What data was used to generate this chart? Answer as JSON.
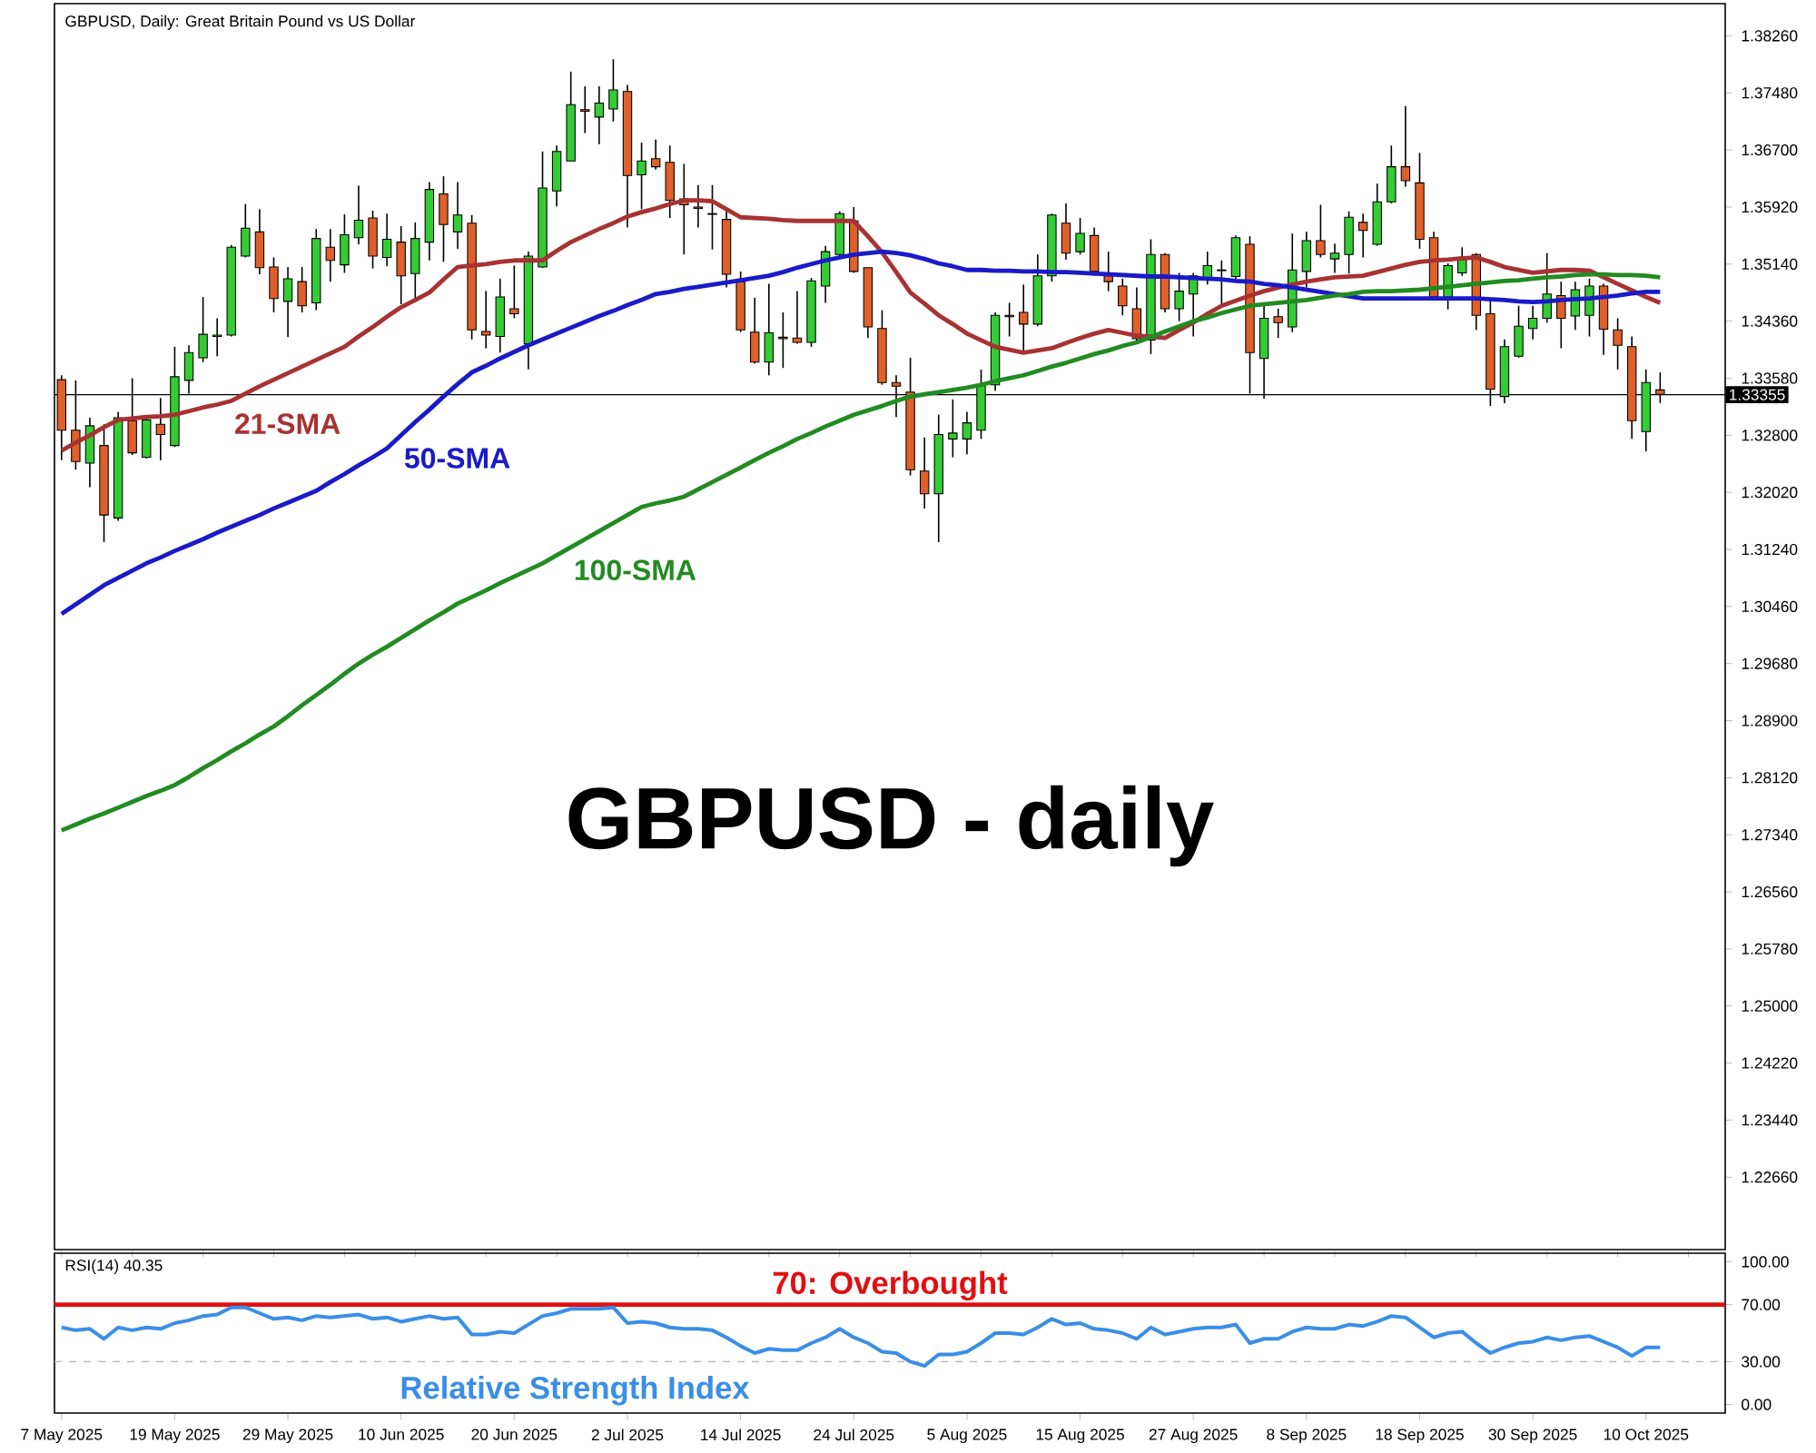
{
  "chart_data": [
    {
      "type": "candlestick",
      "title": "GBPUSD, Daily:  Great Britain Pound vs US Dollar",
      "categories": [
        null,
        null,
        null,
        null,
        null,
        null,
        null,
        null,
        null,
        null,
        null,
        null,
        null,
        null,
        null,
        null,
        null,
        null,
        null,
        null,
        null,
        null,
        null,
        null,
        null,
        null,
        null,
        null,
        null,
        null,
        null,
        null,
        null,
        null,
        null,
        null,
        null,
        null,
        null,
        null,
        null,
        null,
        null,
        null,
        null,
        null,
        null,
        null,
        null,
        null,
        null,
        null,
        null,
        null,
        null,
        null,
        null,
        null,
        null,
        null,
        null,
        null,
        null,
        null,
        null,
        null,
        null,
        null,
        null,
        null,
        null,
        null,
        null,
        null,
        null,
        null,
        null,
        null,
        null,
        null,
        null,
        null,
        null,
        null,
        null,
        null,
        null,
        null,
        null,
        null,
        null,
        null,
        null,
        null,
        null,
        null,
        null,
        null,
        null,
        null,
        null,
        null,
        null,
        null,
        null,
        null,
        null,
        null,
        null,
        null,
        null,
        null,
        null,
        null
      ],
      "tick_labels": "y",
      "ohlc": [
        [
          1.3356,
          1.3362,
          1.3246,
          1.3287
        ],
        [
          1.3287,
          1.3355,
          1.3233,
          1.3244
        ],
        [
          1.3242,
          1.3304,
          1.3209,
          1.3293
        ],
        [
          1.3266,
          1.3295,
          1.3134,
          1.3171
        ],
        [
          1.3167,
          1.3312,
          1.3163,
          1.3304
        ],
        [
          1.33,
          1.3358,
          1.3253,
          1.3256
        ],
        [
          1.325,
          1.3304,
          1.3248,
          1.3301
        ],
        [
          1.3295,
          1.3331,
          1.3246,
          1.3281
        ],
        [
          1.3266,
          1.3401,
          1.3264,
          1.336
        ],
        [
          1.3355,
          1.3403,
          1.3337,
          1.3393
        ],
        [
          1.3386,
          1.3469,
          1.338,
          1.3418
        ],
        [
          1.3415,
          1.344,
          1.3388,
          1.3417
        ],
        [
          1.3417,
          1.354,
          1.3415,
          1.3537
        ],
        [
          1.3525,
          1.3596,
          1.3523,
          1.3563
        ],
        [
          1.3558,
          1.3589,
          1.35,
          1.3509
        ],
        [
          1.351,
          1.3523,
          1.3448,
          1.3467
        ],
        [
          1.3463,
          1.351,
          1.3414,
          1.3494
        ],
        [
          1.349,
          1.351,
          1.3448,
          1.3457
        ],
        [
          1.3461,
          1.3562,
          1.3451,
          1.3549
        ],
        [
          1.3537,
          1.3562,
          1.349,
          1.3519
        ],
        [
          1.3513,
          1.3582,
          1.3502,
          1.3554
        ],
        [
          1.355,
          1.3621,
          1.3541,
          1.3574
        ],
        [
          1.3577,
          1.3587,
          1.3508,
          1.3525
        ],
        [
          1.3523,
          1.3583,
          1.3511,
          1.3548
        ],
        [
          1.3544,
          1.3566,
          1.3459,
          1.3498
        ],
        [
          1.3501,
          1.3571,
          1.3467,
          1.3549
        ],
        [
          1.3544,
          1.3626,
          1.3519,
          1.3616
        ],
        [
          1.361,
          1.3634,
          1.3517,
          1.3568
        ],
        [
          1.3558,
          1.3626,
          1.3535,
          1.3581
        ],
        [
          1.357,
          1.3581,
          1.3411,
          1.3424
        ],
        [
          1.3422,
          1.3477,
          1.3399,
          1.3417
        ],
        [
          1.3415,
          1.3494,
          1.3393,
          1.3469
        ],
        [
          1.3453,
          1.3512,
          1.344,
          1.3446
        ],
        [
          1.3405,
          1.3531,
          1.337,
          1.3525
        ],
        [
          1.351,
          1.3668,
          1.3509,
          1.3618
        ],
        [
          1.3614,
          1.3676,
          1.3593,
          1.3668
        ],
        [
          1.3655,
          1.3777,
          1.3655,
          1.3732
        ],
        [
          1.3725,
          1.3757,
          1.3693,
          1.3723
        ],
        [
          1.3715,
          1.3757,
          1.3678,
          1.3734
        ],
        [
          1.3726,
          1.3794,
          1.3709,
          1.3752
        ],
        [
          1.375,
          1.3759,
          1.3564,
          1.3635
        ],
        [
          1.3636,
          1.368,
          1.3589,
          1.3655
        ],
        [
          1.3658,
          1.3684,
          1.3643,
          1.3647
        ],
        [
          1.3653,
          1.3676,
          1.3577,
          1.3601
        ],
        [
          1.3603,
          1.3651,
          1.3527,
          1.3595
        ],
        [
          1.3592,
          1.3622,
          1.3564,
          1.359
        ],
        [
          1.3583,
          1.3622,
          1.3534,
          1.3582
        ],
        [
          1.3575,
          1.3586,
          1.3482,
          1.35
        ],
        [
          1.349,
          1.3504,
          1.3421,
          1.3424
        ],
        [
          1.3421,
          1.3468,
          1.3378,
          1.338
        ],
        [
          1.338,
          1.3487,
          1.3362,
          1.342
        ],
        [
          1.3414,
          1.3448,
          1.3372,
          1.3412
        ],
        [
          1.3413,
          1.3477,
          1.3405,
          1.3407
        ],
        [
          1.3407,
          1.3495,
          1.3401,
          1.3491
        ],
        [
          1.3484,
          1.3539,
          1.3461,
          1.3531
        ],
        [
          1.3527,
          1.3586,
          1.3523,
          1.3583
        ],
        [
          1.3573,
          1.3592,
          1.3502,
          1.3504
        ],
        [
          1.3509,
          1.3509,
          1.3413,
          1.3428
        ],
        [
          1.3426,
          1.3451,
          1.3349,
          1.3352
        ],
        [
          1.3352,
          1.3362,
          1.3305,
          1.3347
        ],
        [
          1.3339,
          1.3386,
          1.3225,
          1.3233
        ],
        [
          1.3231,
          1.3277,
          1.318,
          1.32
        ],
        [
          1.32,
          1.3308,
          1.3134,
          1.3281
        ],
        [
          1.3275,
          1.3329,
          1.325,
          1.3283
        ],
        [
          1.3275,
          1.3312,
          1.3254,
          1.3297
        ],
        [
          1.3287,
          1.337,
          1.3275,
          1.3349
        ],
        [
          1.3349,
          1.3448,
          1.3341,
          1.3444
        ],
        [
          1.3444,
          1.3461,
          1.3415,
          1.3442
        ],
        [
          1.3448,
          1.3486,
          1.3395,
          1.3432
        ],
        [
          1.3432,
          1.3527,
          1.3429,
          1.3498
        ],
        [
          1.3498,
          1.3583,
          1.349,
          1.3581
        ],
        [
          1.357,
          1.3597,
          1.352,
          1.3529
        ],
        [
          1.3531,
          1.3577,
          1.3527,
          1.3556
        ],
        [
          1.3553,
          1.3564,
          1.3498,
          1.3504
        ],
        [
          1.3498,
          1.3531,
          1.3477,
          1.349
        ],
        [
          1.3484,
          1.3494,
          1.3444,
          1.3457
        ],
        [
          1.3453,
          1.3482,
          1.3407,
          1.3412
        ],
        [
          1.341,
          1.3548,
          1.3391,
          1.3527
        ],
        [
          1.3527,
          1.3529,
          1.3448,
          1.3453
        ],
        [
          1.3453,
          1.3502,
          1.3436,
          1.3477
        ],
        [
          1.3473,
          1.3502,
          1.3415,
          1.3498
        ],
        [
          1.3494,
          1.3531,
          1.3486,
          1.3512
        ],
        [
          1.3506,
          1.3519,
          1.3457,
          1.3505
        ],
        [
          1.3497,
          1.3553,
          1.3494,
          1.355
        ],
        [
          1.3541,
          1.3552,
          1.3337,
          1.3393
        ],
        [
          1.3385,
          1.3461,
          1.333,
          1.344
        ],
        [
          1.3442,
          1.3453,
          1.3413,
          1.3434
        ],
        [
          1.3428,
          1.3556,
          1.3421,
          1.3506
        ],
        [
          1.3504,
          1.3558,
          1.3482,
          1.3546
        ],
        [
          1.3546,
          1.3595,
          1.3523,
          1.3527
        ],
        [
          1.3521,
          1.3542,
          1.3502,
          1.3529
        ],
        [
          1.3527,
          1.3586,
          1.3501,
          1.3578
        ],
        [
          1.3571,
          1.3583,
          1.3523,
          1.356
        ],
        [
          1.3541,
          1.3624,
          1.3539,
          1.3599
        ],
        [
          1.3599,
          1.3676,
          1.3597,
          1.3647
        ],
        [
          1.3647,
          1.373,
          1.362,
          1.3628
        ],
        [
          1.3625,
          1.3666,
          1.3535,
          1.3548
        ],
        [
          1.355,
          1.3558,
          1.3465,
          1.3469
        ],
        [
          1.3469,
          1.3515,
          1.3452,
          1.3512
        ],
        [
          1.3502,
          1.3537,
          1.3498,
          1.352
        ],
        [
          1.3527,
          1.3529,
          1.3424,
          1.3444
        ],
        [
          1.3446,
          1.3465,
          1.332,
          1.3343
        ],
        [
          1.3333,
          1.3411,
          1.3324,
          1.3401
        ],
        [
          1.3388,
          1.3457,
          1.3386,
          1.3429
        ],
        [
          1.3426,
          1.3457,
          1.3411,
          1.344
        ],
        [
          1.344,
          1.3529,
          1.3434,
          1.3473
        ],
        [
          1.3471,
          1.349,
          1.3399,
          1.344
        ],
        [
          1.3443,
          1.349,
          1.3424,
          1.3479
        ],
        [
          1.3444,
          1.3494,
          1.3415,
          1.3484
        ],
        [
          1.3484,
          1.3487,
          1.339,
          1.3425
        ],
        [
          1.3424,
          1.344,
          1.337,
          1.3403
        ],
        [
          1.3401,
          1.3415,
          1.3275,
          1.33
        ],
        [
          1.3285,
          1.337,
          1.3258,
          1.3352
        ],
        [
          1.3342,
          1.3366,
          1.3324,
          1.3336
        ]
      ],
      "series": [
        {
          "type": "line",
          "name": "21-SMA",
          "color": "#a83232",
          "values": [
            1.3259,
            1.327,
            1.328,
            1.3291,
            1.3301,
            1.3303,
            1.3305,
            1.3306,
            1.3308,
            1.3313,
            1.3318,
            1.3322,
            1.3327,
            1.3337,
            1.3347,
            1.3356,
            1.3365,
            1.3374,
            1.3383,
            1.3392,
            1.3401,
            1.3415,
            1.3428,
            1.3442,
            1.3455,
            1.3465,
            1.3475,
            1.3493,
            1.351,
            1.3512,
            1.3514,
            1.3517,
            1.3519,
            1.3519,
            1.3519,
            1.3532,
            1.3544,
            1.3553,
            1.3562,
            1.357,
            1.3579,
            1.3585,
            1.359,
            1.3596,
            1.3601,
            1.3601,
            1.36,
            1.3589,
            1.3578,
            1.3577,
            1.3576,
            1.3574,
            1.3573,
            1.3573,
            1.3573,
            1.3573,
            1.3573,
            1.3552,
            1.353,
            1.3503,
            1.3475,
            1.346,
            1.3444,
            1.3432,
            1.3419,
            1.341,
            1.3401,
            1.3397,
            1.3393,
            1.3396,
            1.3399,
            1.3406,
            1.3413,
            1.3419,
            1.3424,
            1.342,
            1.3416,
            1.3415,
            1.3413,
            1.3424,
            1.3434,
            1.3446,
            1.3457,
            1.3464,
            1.3471,
            1.3477,
            1.3482,
            1.3486,
            1.349,
            1.3493,
            1.3496,
            1.3497,
            1.3498,
            1.3503,
            1.3508,
            1.3513,
            1.3517,
            1.3519,
            1.352,
            1.3522,
            1.3523,
            1.3517,
            1.351,
            1.3506,
            1.3502,
            1.3504,
            1.3506,
            1.3506,
            1.3505,
            1.3496,
            1.3487,
            1.3478,
            1.3469,
            1.3461
          ]
        },
        {
          "type": "line",
          "name": "50-SMA",
          "color": "#1a1ac8",
          "values": [
            1.3036,
            1.3049,
            1.3062,
            1.3075,
            1.3085,
            1.3095,
            1.3105,
            1.3113,
            1.3122,
            1.313,
            1.3138,
            1.3147,
            1.3155,
            1.3163,
            1.3171,
            1.318,
            1.3188,
            1.3196,
            1.3204,
            1.3216,
            1.3227,
            1.3239,
            1.325,
            1.3262,
            1.328,
            1.3298,
            1.3315,
            1.3333,
            1.335,
            1.3366,
            1.3375,
            1.3385,
            1.3394,
            1.3403,
            1.3411,
            1.3419,
            1.3427,
            1.3435,
            1.3443,
            1.345,
            1.3458,
            1.3465,
            1.3473,
            1.3476,
            1.348,
            1.3483,
            1.3486,
            1.3489,
            1.3492,
            1.3495,
            1.3498,
            1.3503,
            1.3509,
            1.3514,
            1.3519,
            1.3523,
            1.3527,
            1.3529,
            1.3531,
            1.3529,
            1.3526,
            1.3521,
            1.3515,
            1.3511,
            1.3506,
            1.3506,
            1.3505,
            1.3505,
            1.3504,
            1.3504,
            1.3503,
            1.3503,
            1.3502,
            1.3501,
            1.35,
            1.3499,
            1.3498,
            1.3497,
            1.3497,
            1.3496,
            1.3495,
            1.3494,
            1.3493,
            1.3491,
            1.349,
            1.3487,
            1.3485,
            1.3482,
            1.3479,
            1.3476,
            1.3473,
            1.347,
            1.3467,
            1.3467,
            1.3467,
            1.3467,
            1.3467,
            1.3467,
            1.3467,
            1.3467,
            1.3467,
            1.3466,
            1.3465,
            1.3463,
            1.3462,
            1.3463,
            1.3465,
            1.3466,
            1.3467,
            1.3469,
            1.3471,
            1.3474,
            1.3476,
            1.3476
          ]
        },
        {
          "type": "line",
          "name": "100-SMA",
          "color": "#228b22",
          "values": [
            1.274,
            1.2748,
            1.2756,
            1.2763,
            1.2771,
            1.2779,
            1.2787,
            1.2794,
            1.2802,
            1.2813,
            1.2825,
            1.2836,
            1.2848,
            1.2859,
            1.2871,
            1.2882,
            1.2896,
            1.2911,
            1.2925,
            1.2939,
            1.2954,
            1.2968,
            1.298,
            1.2991,
            1.3003,
            1.3015,
            1.3027,
            1.3038,
            1.305,
            1.3059,
            1.3068,
            1.3078,
            1.3087,
            1.3096,
            1.3105,
            1.3116,
            1.3127,
            1.3138,
            1.3149,
            1.316,
            1.3171,
            1.3182,
            1.3187,
            1.3191,
            1.3196,
            1.3206,
            1.3216,
            1.3226,
            1.3236,
            1.3246,
            1.3256,
            1.3265,
            1.3275,
            1.3283,
            1.3292,
            1.33,
            1.3308,
            1.3314,
            1.332,
            1.3327,
            1.3333,
            1.3336,
            1.3339,
            1.3342,
            1.3345,
            1.3349,
            1.3354,
            1.3358,
            1.3362,
            1.3368,
            1.3374,
            1.3379,
            1.3385,
            1.3391,
            1.3396,
            1.3402,
            1.3407,
            1.3414,
            1.3422,
            1.3429,
            1.3436,
            1.3441,
            1.3447,
            1.3452,
            1.3457,
            1.3459,
            1.3461,
            1.3463,
            1.3465,
            1.3468,
            1.3471,
            1.3473,
            1.3476,
            1.3477,
            1.3477,
            1.3478,
            1.3479,
            1.3481,
            1.3483,
            1.3485,
            1.3487,
            1.3489,
            1.3491,
            1.3492,
            1.3494,
            1.3496,
            1.3497,
            1.3499,
            1.35,
            1.35,
            1.3499,
            1.3499,
            1.3498,
            1.3496
          ]
        }
      ],
      "ylim": [
        1.2167,
        1.387
      ],
      "yticks": [
        {
          "value": 1.2266,
          "label": "1.22660"
        },
        {
          "value": 1.2344,
          "label": "1.23440"
        },
        {
          "value": 1.2422,
          "label": "1.24220"
        },
        {
          "value": 1.25,
          "label": "1.25000"
        },
        {
          "value": 1.2578,
          "label": "1.25780"
        },
        {
          "value": 1.2656,
          "label": "1.26560"
        },
        {
          "value": 1.2734,
          "label": "1.27340"
        },
        {
          "value": 1.2812,
          "label": "1.28120"
        },
        {
          "value": 1.289,
          "label": "1.28900"
        },
        {
          "value": 1.2968,
          "label": "1.29680"
        },
        {
          "value": 1.3046,
          "label": "1.30460"
        },
        {
          "value": 1.3124,
          "label": "1.31240"
        },
        {
          "value": 1.3202,
          "label": "1.32020"
        },
        {
          "value": 1.328,
          "label": "1.32800"
        },
        {
          "value": 1.3358,
          "label": "1.33580"
        },
        {
          "value": 1.3436,
          "label": "1.34360"
        },
        {
          "value": 1.3514,
          "label": "1.35140"
        },
        {
          "value": 1.3592,
          "label": "1.35920"
        },
        {
          "value": 1.367,
          "label": "1.36700"
        },
        {
          "value": 1.3748,
          "label": "1.37480"
        },
        {
          "value": 1.3826,
          "label": "1.38260"
        }
      ],
      "ref_lines": [
        {
          "axis": "y",
          "value": 1.33355,
          "label": "1.33355",
          "color": "#000000"
        }
      ],
      "annotations": [
        "GBPUSD - daily"
      ]
    },
    {
      "type": "line",
      "title": "RSI(14) 40.35",
      "categories": [
        "7 May 2025",
        null,
        null,
        null,
        null,
        null,
        null,
        null,
        "19 May 2025",
        null,
        null,
        null,
        null,
        null,
        null,
        null,
        "29 May 2025",
        null,
        null,
        null,
        null,
        null,
        null,
        null,
        "10 Jun 2025",
        null,
        null,
        null,
        null,
        null,
        null,
        null,
        "20 Jun 2025",
        null,
        null,
        null,
        null,
        null,
        null,
        null,
        "2 Jul 2025",
        null,
        null,
        null,
        null,
        null,
        null,
        null,
        "14 Jul 2025",
        null,
        null,
        null,
        null,
        null,
        null,
        null,
        "24 Jul 2025",
        null,
        null,
        null,
        null,
        null,
        null,
        null,
        "5 Aug 2025",
        null,
        null,
        null,
        null,
        null,
        null,
        null,
        "15 Aug 2025",
        null,
        null,
        null,
        null,
        null,
        null,
        null,
        "27 Aug 2025",
        null,
        null,
        null,
        null,
        null,
        null,
        null,
        "8 Sep 2025",
        null,
        null,
        null,
        null,
        null,
        null,
        null,
        "18 Sep 2025",
        null,
        null,
        null,
        null,
        null,
        null,
        null,
        "30 Sep 2025",
        null,
        null,
        null,
        null,
        null,
        null,
        null,
        "10 Oct 2025",
        null
      ],
      "series": [
        {
          "color": "#3a8ee6",
          "values": [
            54,
            52,
            53,
            46,
            54,
            52,
            54,
            53,
            57,
            59,
            62,
            63,
            68,
            68,
            64,
            60,
            61,
            59,
            62,
            61,
            62,
            63,
            60,
            61,
            58,
            60,
            62,
            60,
            61,
            49,
            49,
            51,
            50,
            56,
            62,
            64,
            67,
            67,
            67,
            68,
            57,
            58,
            57,
            54,
            53,
            53,
            52,
            47,
            41,
            36,
            39,
            38,
            38,
            43,
            47,
            53,
            47,
            43,
            37,
            36,
            30,
            27,
            35,
            35,
            37,
            43,
            50,
            50,
            49,
            54,
            60,
            56,
            57,
            53,
            52,
            50,
            46,
            54,
            49,
            51,
            53,
            54,
            54,
            56,
            43,
            46,
            46,
            51,
            54,
            53,
            53,
            56,
            55,
            58,
            62,
            61,
            54,
            47,
            50,
            51,
            43,
            36,
            40,
            43,
            44,
            47,
            45,
            47,
            48,
            44,
            40,
            34,
            40,
            40
          ]
        }
      ],
      "ylim": [
        -6,
        106
      ],
      "yticks": [
        {
          "value": 0,
          "label": "0.00"
        },
        {
          "value": 30,
          "label": "30.00"
        },
        {
          "value": 70,
          "label": "70.00"
        },
        {
          "value": 100,
          "label": "100.00"
        }
      ],
      "ref_lines": [
        {
          "axis": "y",
          "value": 70,
          "label": "70: Overbought",
          "color": "#e01010"
        },
        {
          "axis": "y",
          "value": 30,
          "color": "#b0b0b0",
          "line_style": "dashed"
        }
      ],
      "annotations": [
        "Relative Strength Index"
      ]
    }
  ]
}
